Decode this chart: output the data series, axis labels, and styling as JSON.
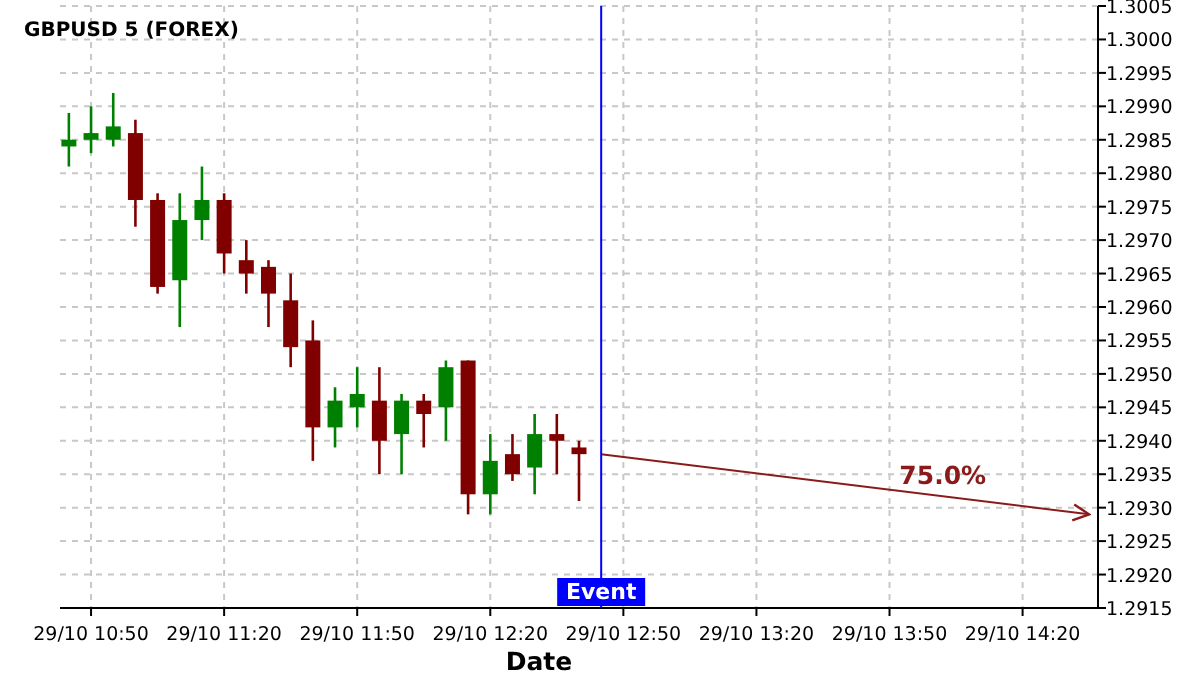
{
  "chart_data": {
    "type": "candlestick",
    "title": "GBPUSD 5 (FOREX)",
    "xlabel": "Date",
    "x": [
      "--10-29T10:45",
      "--10-29T10:50",
      "--10-29T10:55",
      "--10-29T11:00",
      "--10-29T11:05",
      "--10-29T11:10",
      "--10-29T11:15",
      "--10-29T11:20",
      "--10-29T11:25",
      "--10-29T11:30",
      "--10-29T11:35",
      "--10-29T11:40",
      "--10-29T11:45",
      "--10-29T11:50",
      "--10-29T11:55",
      "--10-29T12:00",
      "--10-29T12:05",
      "--10-29T12:10",
      "--10-29T12:15",
      "--10-29T12:20",
      "--10-29T12:25",
      "--10-29T12:30",
      "--10-29T12:35",
      "--10-29T12:40"
    ],
    "ohlc": [
      [
        1.2984,
        1.2989,
        1.2981,
        1.2985
      ],
      [
        1.2985,
        1.299,
        1.2983,
        1.2986
      ],
      [
        1.2985,
        1.2992,
        1.2984,
        1.2987
      ],
      [
        1.2986,
        1.2988,
        1.2972,
        1.2976
      ],
      [
        1.2976,
        1.2977,
        1.2962,
        1.2963
      ],
      [
        1.2964,
        1.2977,
        1.2957,
        1.2973
      ],
      [
        1.2973,
        1.2981,
        1.297,
        1.2976
      ],
      [
        1.2976,
        1.2977,
        1.2965,
        1.2968
      ],
      [
        1.2967,
        1.297,
        1.2962,
        1.2965
      ],
      [
        1.2966,
        1.2967,
        1.2957,
        1.2962
      ],
      [
        1.2961,
        1.2965,
        1.2951,
        1.2954
      ],
      [
        1.2955,
        1.2958,
        1.2937,
        1.2942
      ],
      [
        1.2942,
        1.2948,
        1.2939,
        1.2946
      ],
      [
        1.2945,
        1.2951,
        1.2942,
        1.2947
      ],
      [
        1.2946,
        1.2951,
        1.2935,
        1.294
      ],
      [
        1.2941,
        1.2947,
        1.2935,
        1.2946
      ],
      [
        1.2946,
        1.2947,
        1.2939,
        1.2944
      ],
      [
        1.2945,
        1.2952,
        1.294,
        1.2951
      ],
      [
        1.2952,
        1.2952,
        1.2929,
        1.2932
      ],
      [
        1.2932,
        1.2941,
        1.2929,
        1.2937
      ],
      [
        1.2938,
        1.2941,
        1.2934,
        1.2935
      ],
      [
        1.2936,
        1.2944,
        1.2932,
        1.2941
      ],
      [
        1.2941,
        1.2944,
        1.2935,
        1.294
      ],
      [
        1.2939,
        1.294,
        1.2931,
        1.2938
      ]
    ],
    "colors": [
      "#008000",
      "#008000",
      "#008000",
      "#800000",
      "#800000",
      "#008000",
      "#008000",
      "#800000",
      "#800000",
      "#800000",
      "#800000",
      "#800000",
      "#008000",
      "#008000",
      "#800000",
      "#008000",
      "#800000",
      "#008000",
      "#800000",
      "#008000",
      "#800000",
      "#008000",
      "#800000",
      "#800000"
    ],
    "series": [
      {
        "type": "line",
        "x": [
          "--10-29T12:45",
          "--10-29T14:35"
        ],
        "values": [
          1.2938,
          1.2929
        ],
        "color": "#8b1a1a"
      }
    ],
    "annotations": [
      "75.0%"
    ],
    "ref_lines": [
      {
        "axis": "x",
        "value": "--10-29T12:45",
        "label": "Event",
        "color": "#0000ff"
      }
    ],
    "xlim": [
      "--10-29T10:43",
      "--10-29T14:37"
    ],
    "ylim": [
      1.2915,
      1.3005
    ],
    "xticks": [
      {
        "value": "--10-29T10:50",
        "label": "29/10 10:50"
      },
      {
        "value": "--10-29T11:20",
        "label": "29/10 11:20"
      },
      {
        "value": "--10-29T11:50",
        "label": "29/10 11:50"
      },
      {
        "value": "--10-29T12:20",
        "label": "29/10 12:20"
      },
      {
        "value": "--10-29T12:50",
        "label": "29/10 12:50"
      },
      {
        "value": "--10-29T13:20",
        "label": "29/10 13:20"
      },
      {
        "value": "--10-29T13:50",
        "label": "29/10 13:50"
      },
      {
        "value": "--10-29T14:20",
        "label": "29/10 14:20"
      }
    ],
    "yticks": [
      1.2915,
      {
        "value": 1.292,
        "label": "1.2920"
      },
      1.2925,
      {
        "value": 1.293,
        "label": "1.2930"
      },
      1.2935,
      {
        "value": 1.294,
        "label": "1.2940"
      },
      1.2945,
      {
        "value": 1.295,
        "label": "1.2950"
      },
      1.2955,
      {
        "value": 1.296,
        "label": "1.2960"
      },
      1.2965,
      {
        "value": 1.297,
        "label": "1.2970"
      },
      1.2975,
      {
        "value": 1.298,
        "label": "1.2980"
      },
      1.2985,
      {
        "value": 1.299,
        "label": "1.2990"
      },
      1.2995,
      {
        "value": 1.3,
        "label": "1.3000"
      },
      1.3005
    ],
    "grid": true
  }
}
